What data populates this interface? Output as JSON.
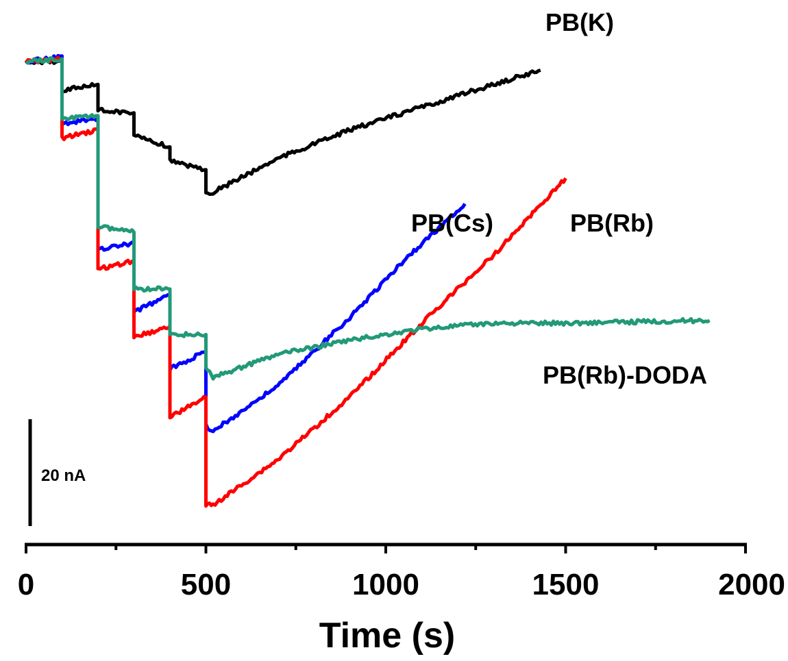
{
  "chart_data": {
    "type": "line",
    "title": "",
    "xlabel": "Time (s)",
    "ylabel": "",
    "xlim": [
      0,
      2000
    ],
    "xticks": [
      "0",
      "500",
      "1000",
      "1500",
      "2000"
    ],
    "y_axis_shown": false,
    "grid": false,
    "legend": "inline labels",
    "scale_bar": {
      "label": "20 nA",
      "value": 20,
      "unit": "nA"
    },
    "series": [
      {
        "name": "PB(K)",
        "color": "#000000",
        "points": [
          [
            0,
            0
          ],
          [
            100,
            0
          ],
          [
            100,
            -10
          ],
          [
            200,
            -8
          ],
          [
            200,
            -17
          ],
          [
            300,
            -18
          ],
          [
            300,
            -26
          ],
          [
            400,
            -30
          ],
          [
            400,
            -35
          ],
          [
            500,
            -38
          ],
          [
            500,
            -46
          ],
          [
            520,
            -46
          ],
          [
            700,
            -34
          ],
          [
            900,
            -24
          ],
          [
            1100,
            -16
          ],
          [
            1300,
            -8
          ],
          [
            1430,
            -3
          ]
        ]
      },
      {
        "name": "PB(Cs)",
        "color": "#0000ff",
        "points": [
          [
            0,
            0
          ],
          [
            100,
            2
          ],
          [
            100,
            -22
          ],
          [
            200,
            -20
          ],
          [
            200,
            -66
          ],
          [
            300,
            -64
          ],
          [
            300,
            -88
          ],
          [
            400,
            -82
          ],
          [
            400,
            -108
          ],
          [
            500,
            -102
          ],
          [
            500,
            -128
          ],
          [
            520,
            -130
          ],
          [
            700,
            -114
          ],
          [
            900,
            -90
          ],
          [
            1050,
            -70
          ],
          [
            1220,
            -50
          ]
        ]
      },
      {
        "name": "PB(Rb)",
        "color": "#ff0000",
        "points": [
          [
            0,
            0
          ],
          [
            100,
            1
          ],
          [
            100,
            -27
          ],
          [
            200,
            -24
          ],
          [
            200,
            -73
          ],
          [
            300,
            -70
          ],
          [
            300,
            -97
          ],
          [
            400,
            -93
          ],
          [
            400,
            -125
          ],
          [
            500,
            -118
          ],
          [
            500,
            -156
          ],
          [
            520,
            -156
          ],
          [
            700,
            -140
          ],
          [
            900,
            -118
          ],
          [
            1100,
            -92
          ],
          [
            1300,
            -68
          ],
          [
            1500,
            -41
          ]
        ]
      },
      {
        "name": "PB(Rb)-DODA",
        "color": "#229977",
        "points": [
          [
            0,
            0
          ],
          [
            100,
            1
          ],
          [
            100,
            -20
          ],
          [
            200,
            -19
          ],
          [
            200,
            -58
          ],
          [
            300,
            -60
          ],
          [
            300,
            -80
          ],
          [
            400,
            -80
          ],
          [
            400,
            -96
          ],
          [
            500,
            -96
          ],
          [
            500,
            -108
          ],
          [
            520,
            -111
          ],
          [
            700,
            -103
          ],
          [
            900,
            -98
          ],
          [
            1100,
            -94
          ],
          [
            1300,
            -92
          ],
          [
            1500,
            -92
          ],
          [
            1900,
            -91
          ]
        ]
      }
    ]
  }
}
